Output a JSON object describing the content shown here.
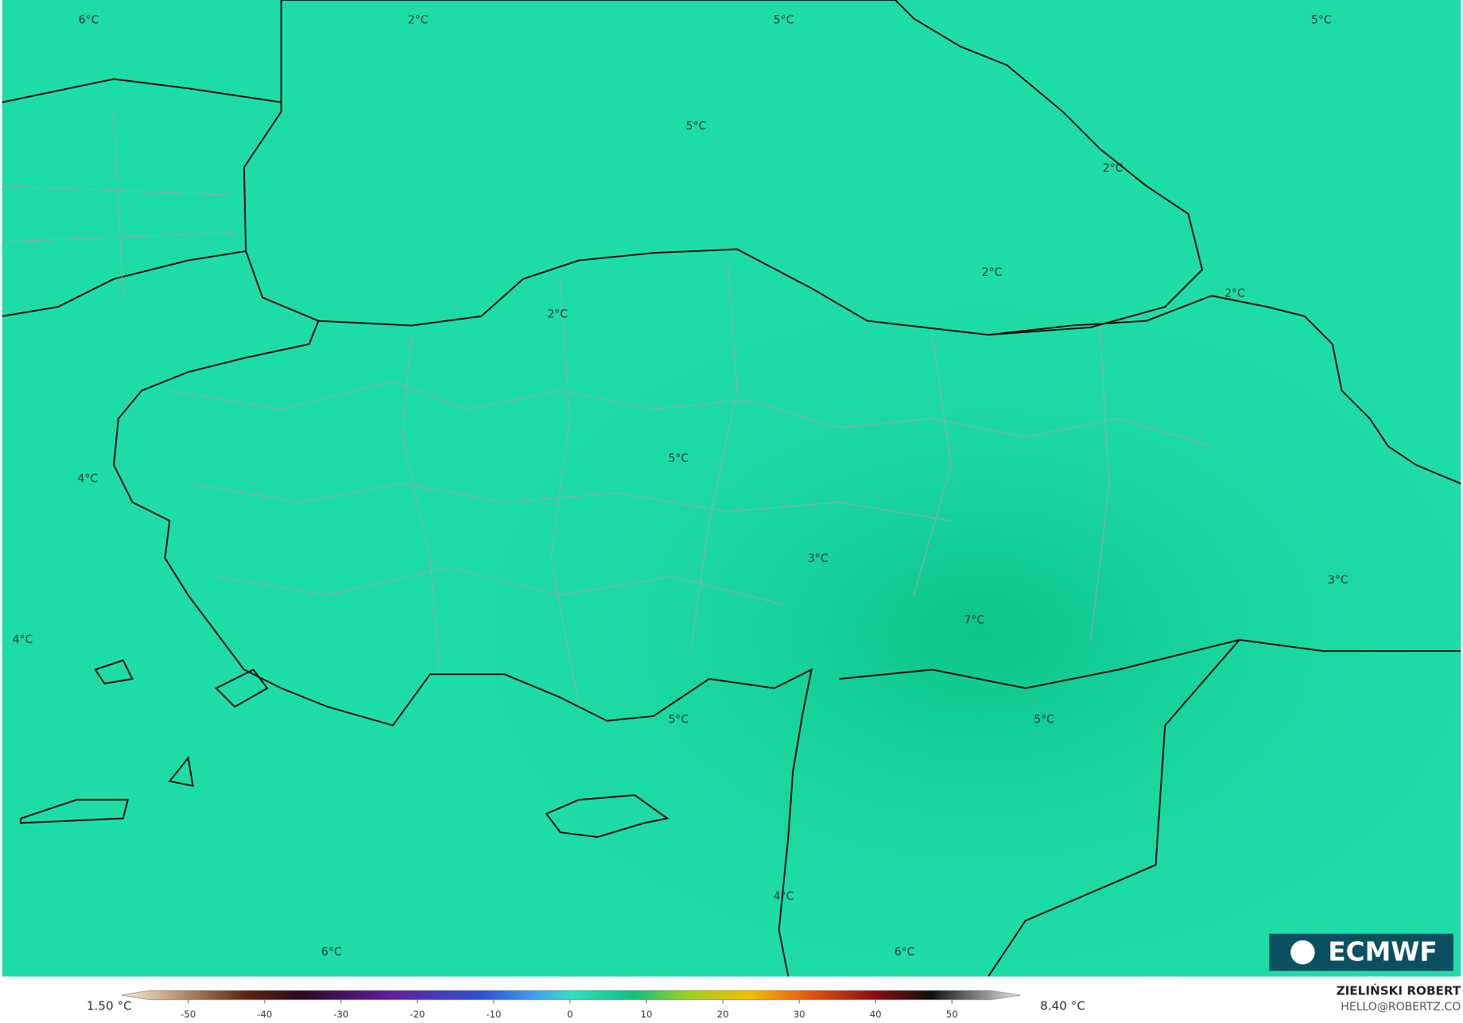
{
  "map": {
    "contour_labels": [
      "6°C",
      "2°C",
      "5°C",
      "5°C",
      "5°C",
      "2°C",
      "2°C",
      "2°C",
      "2°C",
      "5°C",
      "4°C",
      "3°C",
      "3°C",
      "7°C",
      "4°C",
      "5°C",
      "5°C",
      "4°C",
      "6°C",
      "6°C"
    ]
  },
  "colorbar": {
    "min_label": "1.50 °C",
    "max_label": "8.40 °C",
    "range": [
      -55,
      55
    ],
    "ticks": [
      -50,
      -40,
      -30,
      -20,
      -10,
      0,
      10,
      20,
      30,
      40,
      50
    ]
  },
  "credit": {
    "author": "ZIELIŃSKI ROBERT",
    "email": "HELLO@ROBERTZ.CO"
  },
  "logo": "ECMWF"
}
